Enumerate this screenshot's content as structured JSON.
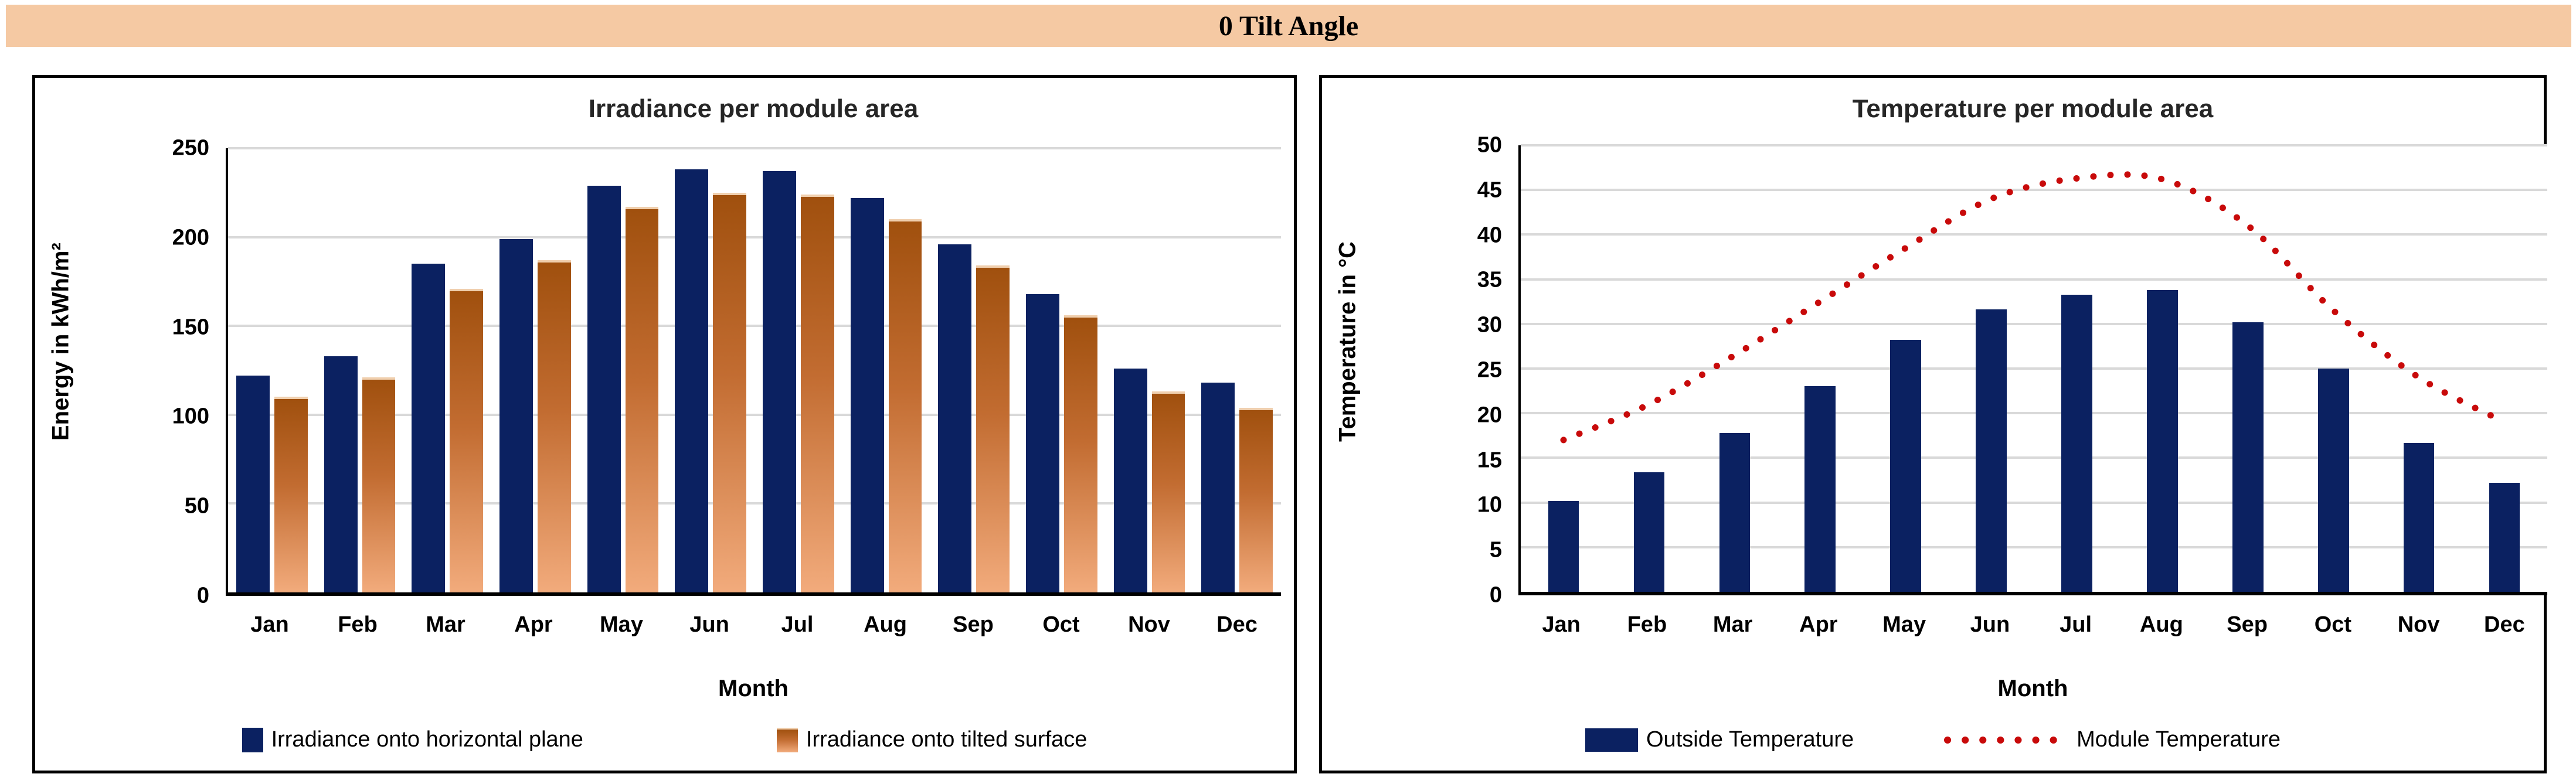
{
  "banner": {
    "title": "0 Tilt Angle"
  },
  "colors": {
    "banner": "#f5c9a3",
    "navy": "#0b2161",
    "orangeTop": "#a0500e",
    "orangeBottom": "#f2ab7c",
    "red": "#c80a0a",
    "grid": "#d9d9d9"
  },
  "chart_data": [
    {
      "type": "bar",
      "title": "Irradiance per module area",
      "ylabel": "Energy in kWh/m²",
      "xlabel": "Month",
      "ylim": [
        0,
        250
      ],
      "yticks": [
        0,
        50,
        100,
        150,
        200,
        250
      ],
      "grid": "horizontal",
      "legend_position": "bottom",
      "months": [
        "Jan",
        "Feb",
        "Mar",
        "Apr",
        "May",
        "Jun",
        "Jul",
        "Aug",
        "Sep",
        "Oct",
        "Nov",
        "Dec"
      ],
      "series": [
        {
          "name": "Irradiance onto horizontal plane",
          "type": "bar",
          "style": "navy",
          "values": [
            122,
            133,
            185,
            199,
            229,
            238,
            237,
            222,
            196,
            168,
            126,
            118
          ]
        },
        {
          "name": "Irradiance onto tilted surface",
          "type": "bar",
          "style": "orange-grad",
          "values": [
            110,
            121,
            171,
            187,
            217,
            225,
            224,
            210,
            184,
            156,
            113,
            104
          ]
        }
      ]
    },
    {
      "type": "bar",
      "title": "Temperature per module area",
      "ylabel": "Temperature in °C",
      "xlabel": "Month",
      "ylim": [
        0,
        50
      ],
      "yticks": [
        0,
        5,
        10,
        15,
        20,
        25,
        30,
        35,
        40,
        45,
        50
      ],
      "grid": "horizontal",
      "legend_position": "bottom",
      "months": [
        "Jan",
        "Feb",
        "Mar",
        "Apr",
        "May",
        "Jun",
        "Jul",
        "Aug",
        "Sep",
        "Oct",
        "Nov",
        "Dec"
      ],
      "series": [
        {
          "name": "Outside Temperature",
          "type": "bar",
          "style": "navy",
          "values": [
            10.2,
            13.4,
            17.8,
            23,
            28.2,
            31.6,
            33.3,
            33.8,
            30.2,
            25,
            16.7,
            12.2
          ]
        },
        {
          "name": "Module Temperature",
          "type": "dotted-line",
          "style": "red-dotted",
          "values": [
            17,
            21,
            26.5,
            32.5,
            38.5,
            44,
            46.3,
            46.2,
            41,
            31.5,
            24,
            19
          ]
        }
      ]
    }
  ]
}
